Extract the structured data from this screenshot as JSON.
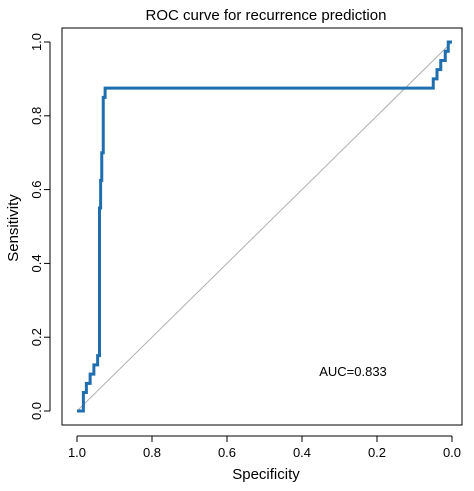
{
  "chart_data": {
    "type": "line",
    "title": "ROC curve for recurrence prediction",
    "xlabel": "Specificity",
    "ylabel": "Sensitivity",
    "xlim": [
      1.0,
      0.0
    ],
    "ylim": [
      0.0,
      1.0
    ],
    "x_reversed": true,
    "x_ticks": [
      1.0,
      0.8,
      0.6,
      0.4,
      0.2,
      0.0
    ],
    "x_tick_labels": [
      "1.0",
      "0.8",
      "0.6",
      "0.4",
      "0.2",
      "0.0"
    ],
    "y_ticks": [
      0.0,
      0.2,
      0.4,
      0.6,
      0.8,
      1.0
    ],
    "y_tick_labels": [
      "0.0",
      "0.2",
      "0.4",
      "0.6",
      "0.8",
      "1.0"
    ],
    "grid": false,
    "legend": "none",
    "annotation": "AUC=0.833",
    "auc": 0.833,
    "series": [
      {
        "color": "#1f6fb0",
        "x": [
          1.0,
          0.983,
          0.983,
          0.975,
          0.975,
          0.965,
          0.965,
          0.955,
          0.955,
          0.945,
          0.945,
          0.94,
          0.94,
          0.937,
          0.937,
          0.934,
          0.934,
          0.93,
          0.93,
          0.925,
          0.925,
          0.05,
          0.05,
          0.04,
          0.04,
          0.03,
          0.03,
          0.018,
          0.018,
          0.01,
          0.01,
          0.005,
          0.005,
          0.0
        ],
        "y": [
          0.0,
          0.0,
          0.05,
          0.05,
          0.075,
          0.075,
          0.1,
          0.1,
          0.125,
          0.125,
          0.15,
          0.15,
          0.55,
          0.55,
          0.625,
          0.625,
          0.7,
          0.7,
          0.85,
          0.85,
          0.875,
          0.875,
          0.9,
          0.9,
          0.925,
          0.925,
          0.95,
          0.95,
          0.975,
          0.975,
          1.0,
          1.0,
          1.0,
          1.0
        ]
      }
    ],
    "reference_line": {
      "color": "#b0b0b0",
      "x": [
        1.0,
        0.0
      ],
      "y": [
        0.0,
        1.0
      ]
    },
    "colors": {
      "axis": "#000000",
      "curve": "#1f6fb0",
      "diagonal": "#b0b0b0"
    }
  }
}
